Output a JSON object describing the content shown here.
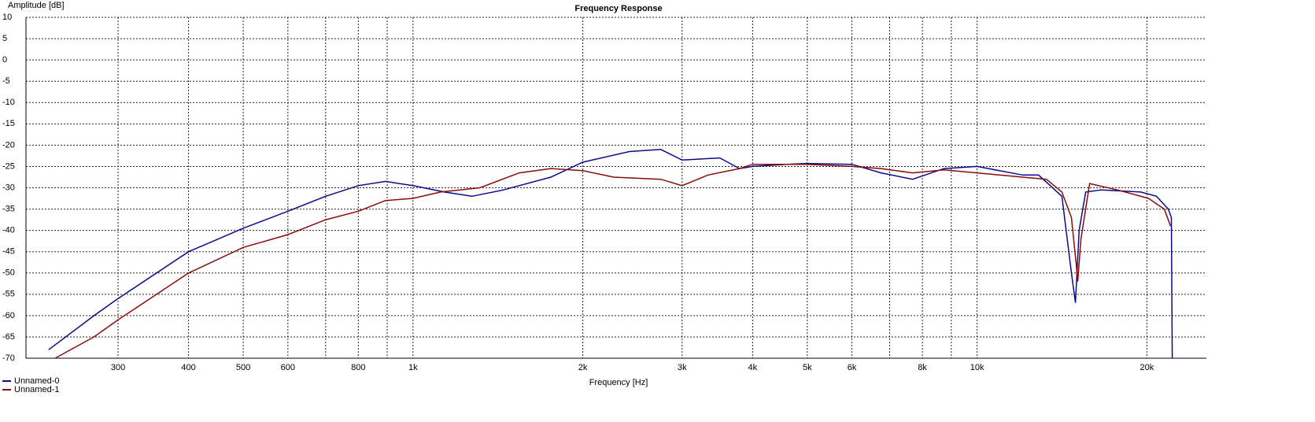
{
  "chart_data": {
    "type": "line",
    "title": "Frequency Response",
    "ylabel": "Amplitude [dB]",
    "xlabel": "Frequency [Hz]",
    "xscale": "log",
    "grid": true,
    "legend": "bottom-left",
    "xlim": [
      206,
      25500
    ],
    "ylim": [
      -70,
      10
    ],
    "yticks": [
      10,
      5,
      0,
      -5,
      -10,
      -15,
      -20,
      -25,
      -30,
      -35,
      -40,
      -45,
      -50,
      -55,
      -60,
      -65,
      -70
    ],
    "xticks": [
      300,
      400,
      500,
      600,
      800,
      {
        "value": 1000,
        "label": "1k"
      },
      {
        "value": 2000,
        "label": "2k"
      },
      {
        "value": 3000,
        "label": "3k"
      },
      {
        "value": 4000,
        "label": "4k"
      },
      {
        "value": 5000,
        "label": "5k"
      },
      {
        "value": 6000,
        "label": "6k"
      },
      {
        "value": 8000,
        "label": "8k"
      },
      {
        "value": 10000,
        "label": "10k"
      },
      {
        "value": 20000,
        "label": "20k"
      }
    ],
    "x_minor_grid": [
      700,
      900,
      7000,
      9000
    ],
    "series": [
      {
        "name": "Unnamed-0",
        "color": "#0a0a8c",
        "x": [
          226,
          272,
          300,
          400,
          500,
          600,
          700,
          800,
          894,
          1000,
          1137,
          1272,
          1447,
          1755,
          2000,
          2418,
          2750,
          3000,
          3499,
          3792,
          4000,
          4598,
          5000,
          6000,
          6757,
          7685,
          8738,
          10000,
          12045,
          12850,
          14140,
          14700,
          14940,
          15170,
          15580,
          16610,
          19510,
          20800,
          21830,
          22100,
          22180
        ],
        "values": [
          -68,
          -60,
          -56,
          -45,
          -39.5,
          -35.5,
          -32,
          -29.5,
          -28.5,
          -29.5,
          -31,
          -32,
          -30.5,
          -27.5,
          -24,
          -21.5,
          -21,
          -23.5,
          -23,
          -25.5,
          -25,
          -24.5,
          -24.3,
          -24.5,
          -26.5,
          -28,
          -25.5,
          -25,
          -27,
          -27,
          -32,
          -50,
          -57,
          -40,
          -31,
          -30.5,
          -31,
          -32,
          -35,
          -37,
          -70
        ]
      },
      {
        "name": "Unnamed-1",
        "color": "#8b0a0a",
        "x": [
          232,
          272,
          300,
          400,
          500,
          600,
          700,
          800,
          894,
          1000,
          1119,
          1314,
          1543,
          1755,
          2000,
          2268,
          2750,
          3000,
          3334,
          3792,
          4000,
          4598,
          5000,
          6000,
          6757,
          7685,
          8738,
          10000,
          12045,
          13270,
          14140,
          14700,
          14990,
          15080,
          15280,
          15830,
          17720,
          20140,
          21470,
          22030
        ],
        "values": [
          -70,
          -65,
          -61,
          -50,
          -44,
          -41,
          -37.5,
          -35.5,
          -33,
          -32.5,
          -31,
          -30,
          -26.5,
          -25.5,
          -26,
          -27.5,
          -28,
          -29.5,
          -27,
          -25.5,
          -24.5,
          -24.5,
          -24.5,
          -25,
          -25.5,
          -26.5,
          -25.8,
          -26.5,
          -27.5,
          -28,
          -31,
          -37,
          -48,
          -52,
          -42,
          -29,
          -30.5,
          -32.5,
          -35,
          -39
        ]
      }
    ]
  }
}
